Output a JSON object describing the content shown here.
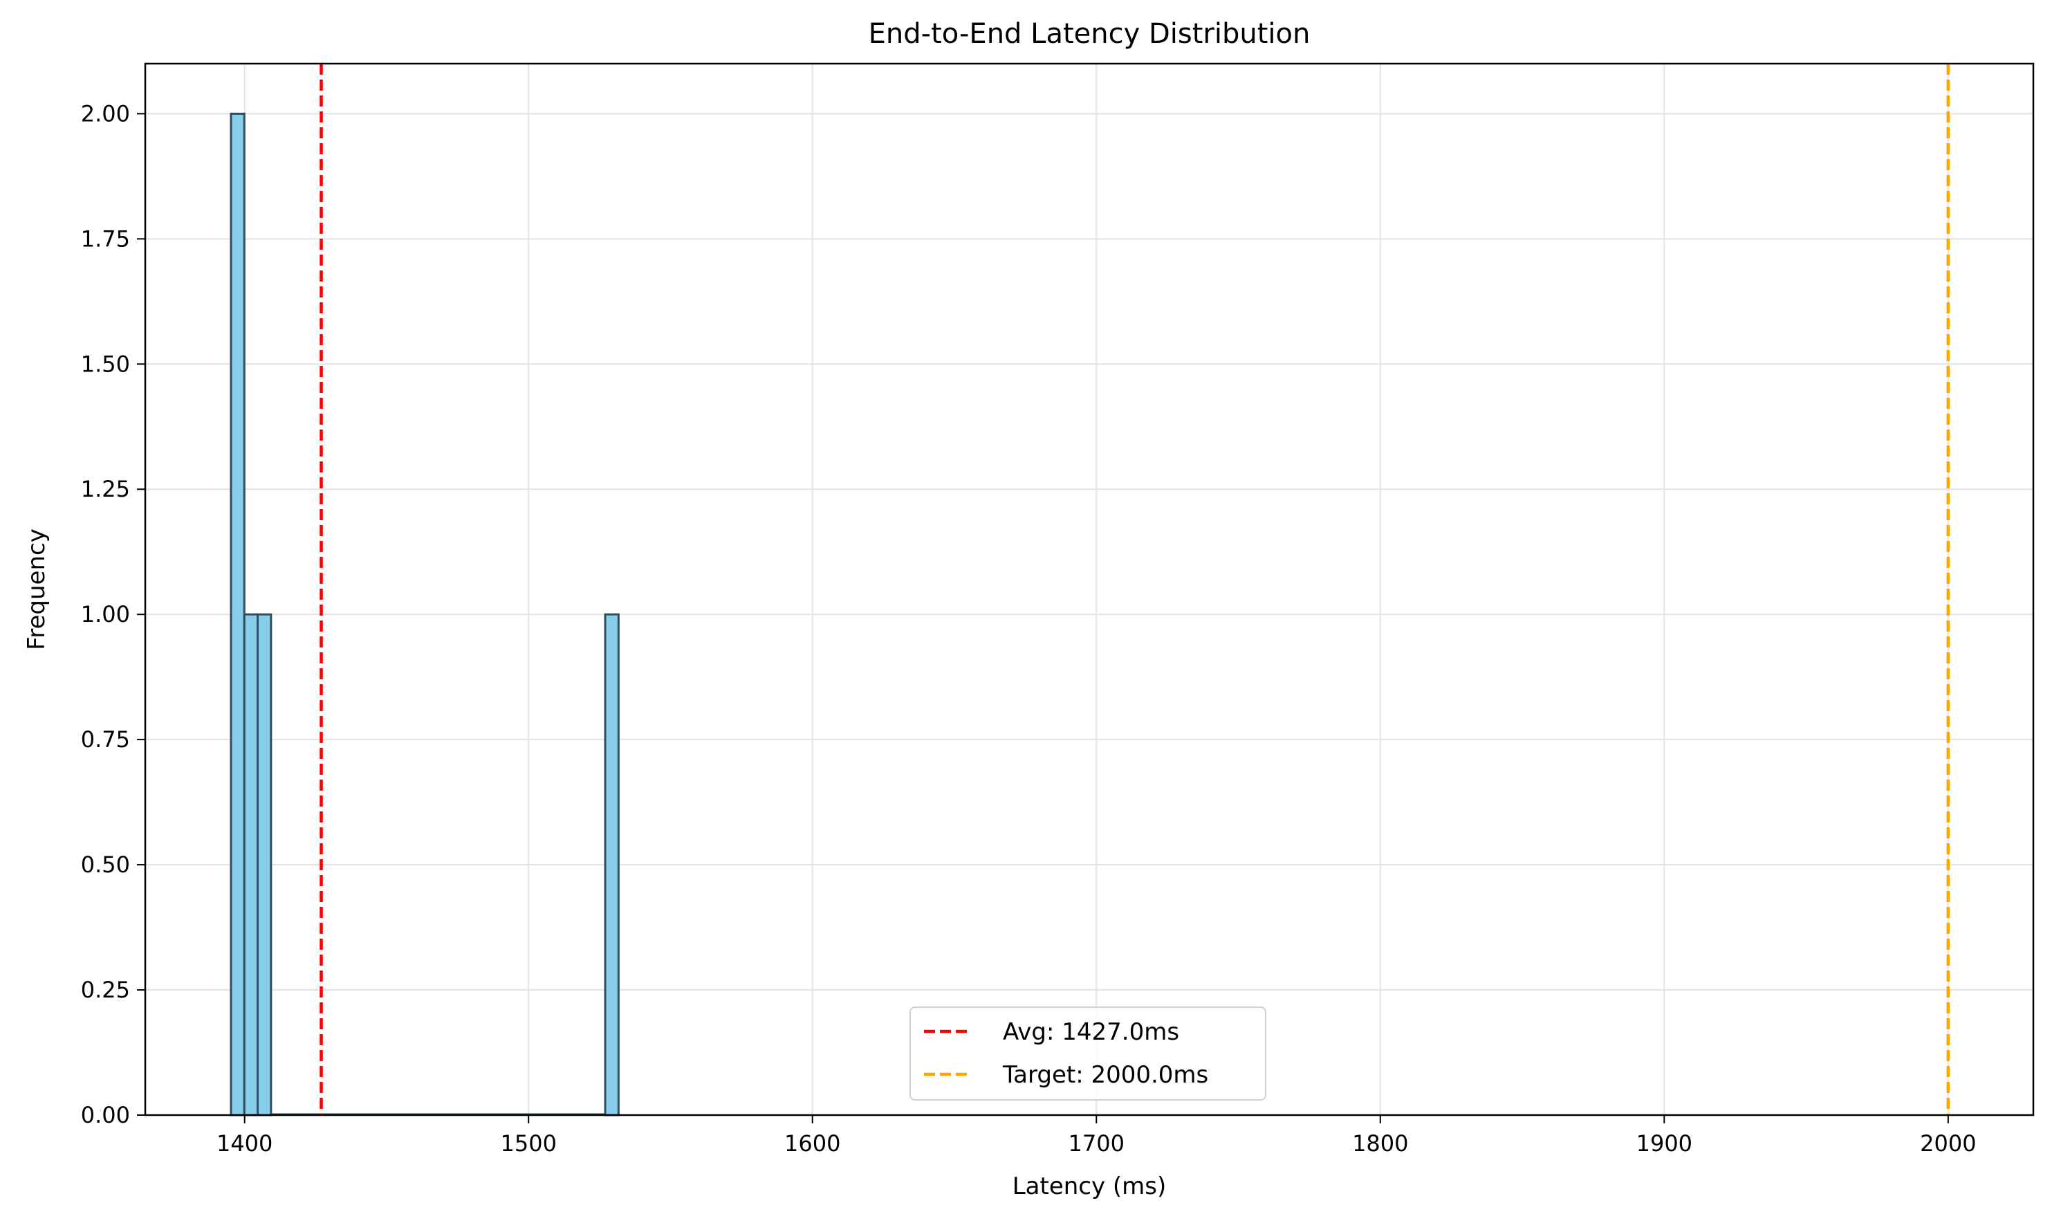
{
  "chart_data": {
    "type": "bar",
    "title": "End-to-End Latency Distribution",
    "xlabel": "Latency (ms)",
    "ylabel": "Frequency",
    "xlim": [
      1365,
      2030
    ],
    "ylim": [
      0,
      2.1
    ],
    "x_ticks": [
      1400,
      1500,
      1600,
      1700,
      1800,
      1900,
      2000
    ],
    "y_ticks": [
      "0.00",
      "0.25",
      "0.50",
      "0.75",
      "1.00",
      "1.25",
      "1.50",
      "1.75",
      "2.00"
    ],
    "bins": [
      {
        "start": 1395.2,
        "end": 1399.9,
        "count": 2
      },
      {
        "start": 1399.9,
        "end": 1404.6,
        "count": 1
      },
      {
        "start": 1404.6,
        "end": 1409.3,
        "count": 1
      },
      {
        "start": 1409.3,
        "end": 1527.0,
        "count": 0
      },
      {
        "start": 1527.0,
        "end": 1531.7,
        "count": 1
      }
    ],
    "bar_color": "#87ceeb",
    "bar_edge_color": "#2f4f5f",
    "grid": true,
    "legend_position": "bottom-center",
    "reference_lines": [
      {
        "label": "Avg: 1427.0ms",
        "x": 1427.0,
        "color": "#ff0000",
        "style": "dashed"
      },
      {
        "label": "Target: 2000.0ms",
        "x": 2000.0,
        "color": "#ffa500",
        "style": "dashed"
      }
    ]
  }
}
